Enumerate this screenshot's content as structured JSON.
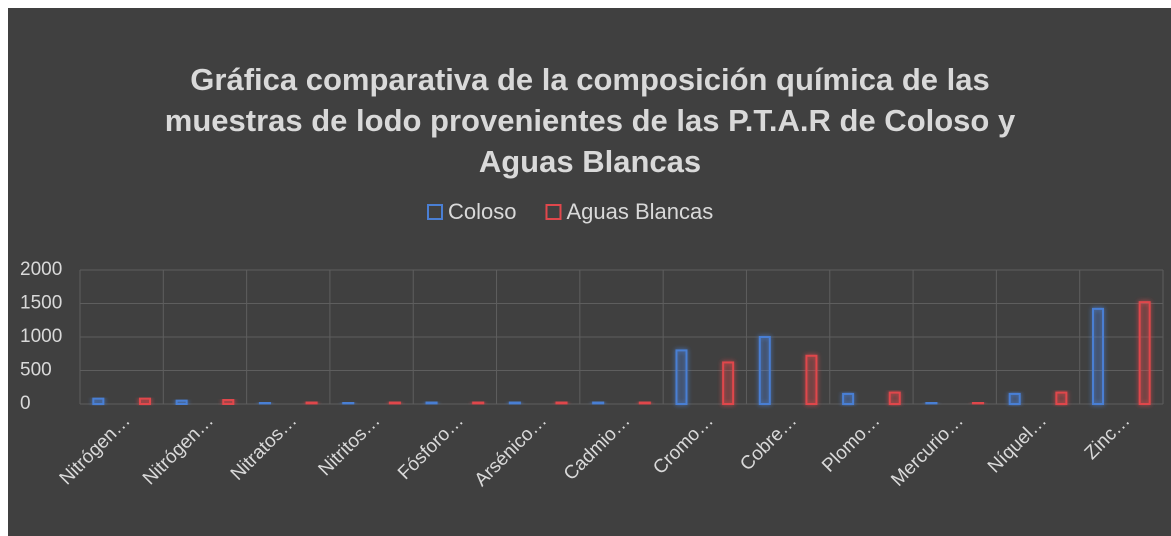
{
  "chart_data": {
    "type": "bar",
    "title": [
      "Gráfica comparativa  de la composición química  de las",
      "muestras de lodo provenientes de las P.T.A.R de Coloso y",
      "Aguas Blancas"
    ],
    "categories": [
      "Nitrógen…",
      "Nitrógen…",
      "Nitratos…",
      "Nitritos…",
      "Fósforo…",
      "Arsénico…",
      "Cadmio…",
      "Cromo…",
      "Cobre…",
      "Plomo…",
      "Mercurio…",
      "Níquel…",
      "Zinc…"
    ],
    "series": [
      {
        "name": "Coloso",
        "color": "#4a7fd4",
        "values": [
          80,
          50,
          20,
          20,
          30,
          30,
          30,
          800,
          1000,
          150,
          20,
          150,
          1420
        ]
      },
      {
        "name": "Aguas Blancas",
        "color": "#e0474c",
        "values": [
          80,
          60,
          30,
          30,
          30,
          30,
          30,
          620,
          720,
          170,
          20,
          170,
          1520
        ]
      }
    ],
    "ylim": [
      0,
      2000
    ],
    "yticks": [
      0,
      500,
      1000,
      1500,
      2000
    ],
    "grid": true,
    "legend": "top"
  }
}
